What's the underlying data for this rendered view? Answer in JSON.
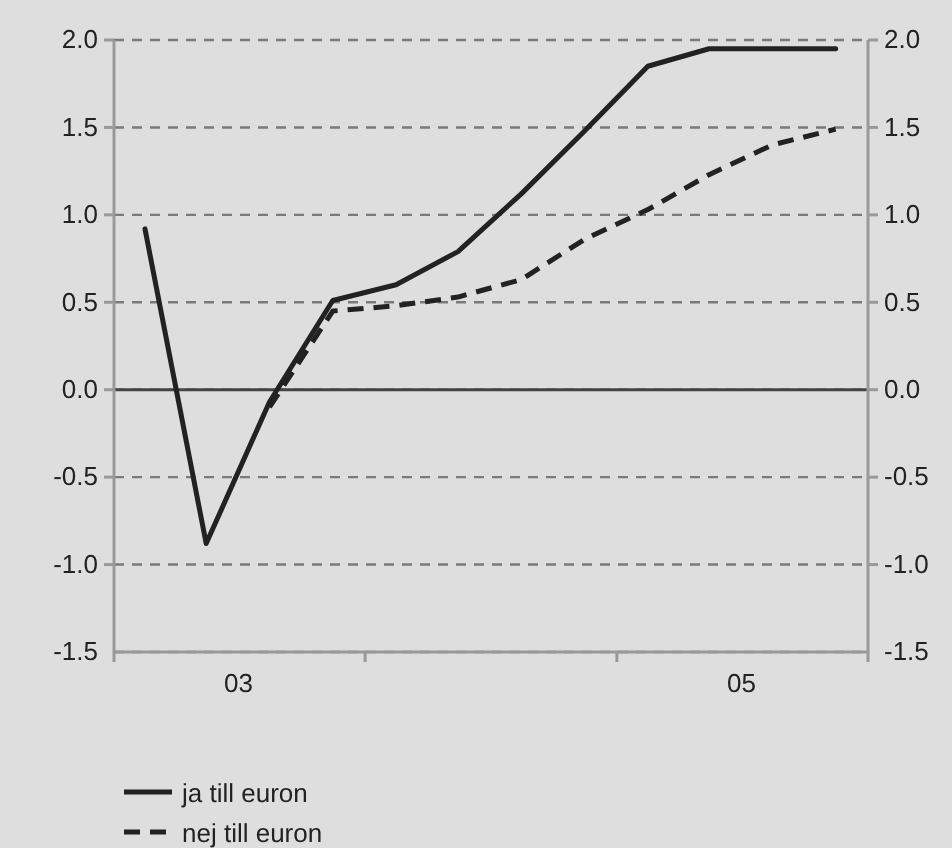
{
  "chart_data": {
    "type": "line",
    "x": [
      "2003-02-15",
      "2003-05-15",
      "2003-08-15",
      "2003-11-15",
      "2004-02-15",
      "2004-05-15",
      "2004-08-15",
      "2004-11-15",
      "2005-02-15",
      "2005-05-15",
      "2005-08-15",
      "2005-11-15"
    ],
    "series": [
      {
        "name": "ja till euron",
        "color": "#222222",
        "line_style": "solid",
        "values": [
          0.92,
          -0.88,
          -0.07,
          0.51,
          0.6,
          0.79,
          1.12,
          1.48,
          1.85,
          1.95,
          1.95,
          1.95
        ]
      },
      {
        "name": "nej till euron",
        "color": "#222222",
        "line_style": "dashed",
        "values": [
          null,
          null,
          -0.1,
          0.45,
          0.48,
          0.53,
          0.63,
          0.86,
          1.03,
          1.23,
          1.4,
          1.49
        ]
      }
    ],
    "xlim": [
      "2003-01-01",
      "2006-01-01"
    ],
    "xticks": [
      {
        "value": "2003-07-01",
        "label": "03"
      },
      {
        "value": "2005-07-01",
        "label": "05"
      }
    ],
    "ylim": [
      -1.5,
      2.0
    ],
    "yticks": [
      {
        "value": -1.5,
        "label": "-1.5"
      },
      {
        "value": -1.0,
        "label": "-1.0"
      },
      {
        "value": -0.5,
        "label": "-0.5"
      },
      {
        "value": 0,
        "label": "0.0"
      },
      {
        "value": 0.5,
        "label": "0.5"
      },
      {
        "value": 1.0,
        "label": "1.0"
      },
      {
        "value": 1.5,
        "label": "1.5"
      },
      {
        "value": 2.0,
        "label": "2.0"
      }
    ],
    "y2lim": [
      -1.5,
      2.0
    ],
    "y2ticks": [
      {
        "value": -1.5,
        "label": "-1.5"
      },
      {
        "value": -1.0,
        "label": "-1.0"
      },
      {
        "value": -0.5,
        "label": "-0.5"
      },
      {
        "value": 0,
        "label": "0.0"
      },
      {
        "value": 0.5,
        "label": "0.5"
      },
      {
        "value": 1.0,
        "label": "1.0"
      },
      {
        "value": 1.5,
        "label": "1.5"
      },
      {
        "value": 2.0,
        "label": "2.0"
      }
    ],
    "ref_lines": [
      {
        "axis": "y",
        "value": 0,
        "color": "#444444"
      }
    ],
    "grid": "y",
    "legend": "bottom left"
  }
}
